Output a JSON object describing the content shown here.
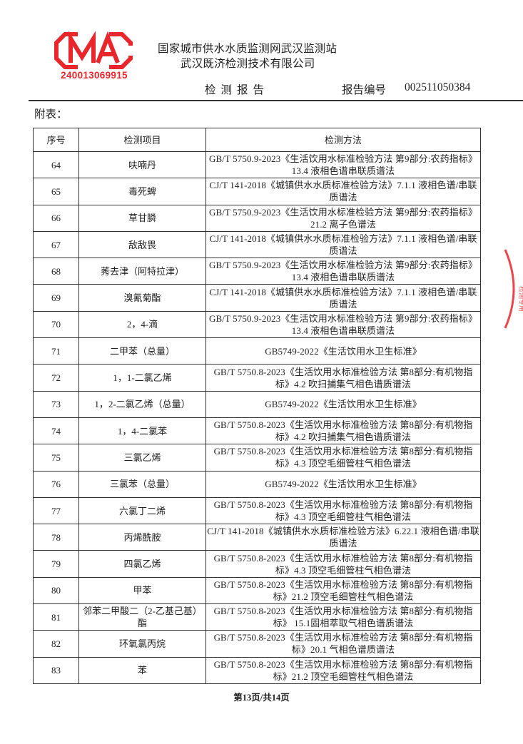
{
  "header": {
    "logo_text": "CMA",
    "logo_number": "240013069915",
    "org_line1": "国家城市供水水质监测网武汉监测站",
    "org_line2": "武汉既济检测技术有限公司",
    "report_title": "检测报告",
    "report_no_label": "报告编号",
    "report_no": "002511050384"
  },
  "annex_label": "附表：",
  "table": {
    "columns": [
      "序号",
      "检测项目",
      "检测方法"
    ],
    "rows": [
      {
        "no": "64",
        "item": "呋喃丹",
        "method": "GB/T 5750.9-2023《生活饮用水标准检验方法 第9部分:农药指标》13.4 液相色谱串联质谱法"
      },
      {
        "no": "65",
        "item": "毒死蜱",
        "method": "CJ/T 141-2018《城镇供水水质标准检验方法》7.1.1 液相色谱/串联质谱法"
      },
      {
        "no": "66",
        "item": "草甘膦",
        "method": "GB/T 5750.9-2023《生活饮用水标准检验方法 第9部分:农药指标》21.2 离子色谱法"
      },
      {
        "no": "67",
        "item": "敌敌畏",
        "method": "CJ/T 141-2018《城镇供水水质标准检验方法》7.1.1 液相色谱/串联质谱法"
      },
      {
        "no": "68",
        "item": "莠去津（阿特拉津）",
        "method": "GB/T 5750.9-2023《生活饮用水标准检验方法 第9部分:农药指标》13.4 液相色谱串联质谱法"
      },
      {
        "no": "69",
        "item": "溴氰菊酯",
        "method": "CJ/T 141-2018《城镇供水水质标准检验方法》7.1.1 液相色谱/串联质谱法"
      },
      {
        "no": "70",
        "item": "2，4-滴",
        "method": "GB/T 5750.9-2023《生活饮用水标准检验方法 第9部分:农药指标》13.4 液相色谱串联质谱法"
      },
      {
        "no": "71",
        "item": "二甲苯（总量）",
        "method": "GB5749-2022《生活饮用水卫生标准》"
      },
      {
        "no": "72",
        "item": "1，1-二氯乙烯",
        "method": "GB/T 5750.8-2023《生活饮用水标准检验方法 第8部分:有机物指标》4.2 吹扫捕集气相色谱质谱法"
      },
      {
        "no": "73",
        "item": "1，2-二氯乙烯（总量）",
        "method": "GB5749-2022《生活饮用水卫生标准》"
      },
      {
        "no": "74",
        "item": "1，4-二氯苯",
        "method": "GB/T 5750.8-2023《生活饮用水标准检验方法 第8部分:有机物指标》4.2 吹扫捕集气相色谱质谱法"
      },
      {
        "no": "75",
        "item": "三氯乙烯",
        "method": "GB/T 5750.8-2023《生活饮用水标准检验方法 第8部分:有机物指标》4.3 顶空毛细管柱气相色谱法"
      },
      {
        "no": "76",
        "item": "三氯苯（总量）",
        "method": "GB5749-2022《生活饮用水卫生标准》"
      },
      {
        "no": "77",
        "item": "六氯丁二烯",
        "method": "GB/T 5750.8-2023《生活饮用水标准检验方法 第8部分:有机物指标》4.3 顶空毛细管柱气相色谱法"
      },
      {
        "no": "78",
        "item": "丙烯酰胺",
        "method": "CJ/T 141-2018《城镇供水水质标准检验方法》6.22.1 液相色谱/串联质谱法"
      },
      {
        "no": "79",
        "item": "四氯乙烯",
        "method": "GB/T 5750.8-2023《生活饮用水标准检验方法 第8部分:有机物指标》4.3 顶空毛细管柱气相色谱法"
      },
      {
        "no": "80",
        "item": "甲苯",
        "method": "GB/T 5750.8-2023《生活饮用水标准检验方法 第8部分:有机物指标》21.2 顶空毛细管柱气相色谱法"
      },
      {
        "no": "81",
        "item": "邻苯二甲酸二（2-乙基己基）酯",
        "method": "GB/T 5750.8-2023《生活饮用水标准检验方法 第8部分:有机物指标》 15.1固相萃取气相色谱质谱法"
      },
      {
        "no": "82",
        "item": "环氧氯丙烷",
        "method": "GB/T 5750.8-2023《生活饮用水标准检验方法 第8部分:有机物指标》20.1 气相色谱质谱法"
      },
      {
        "no": "83",
        "item": "苯",
        "method": "GB/T 5750.8-2023《生活饮用水标准检验方法 第8部分:有机物指标》21.2 顶空毛细管柱气相色谱法"
      }
    ]
  },
  "footer": {
    "page": "第13页/共14页"
  },
  "colors": {
    "seal_red": "#e8262b",
    "text": "#222222"
  }
}
